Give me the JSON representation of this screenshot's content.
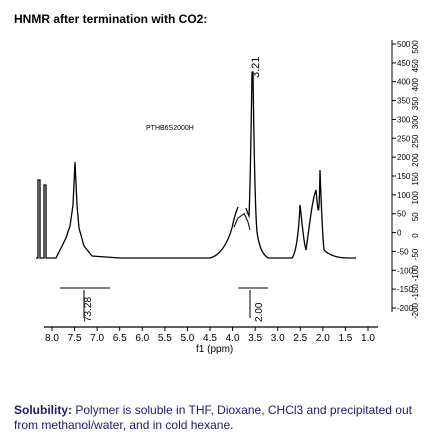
{
  "title": "HNMR after termination with CO2:",
  "spectrum": {
    "peak_label": "3.21",
    "sample_label": "PTHB6S2000H",
    "integrals": [
      "73.28",
      "2.00"
    ],
    "x_ticks": [
      "8.0",
      "7.5",
      "7.0",
      "6.5",
      "6.0",
      "5.5",
      "5.0",
      "4.5",
      "4.0",
      "3.5",
      "3.0",
      "2.5",
      "2.0",
      "1.5",
      "1.0"
    ],
    "x_label": "f1 (ppm)",
    "right_ticks": [
      "500",
      "450",
      "400",
      "350",
      "300",
      "250",
      "200",
      "150",
      "100",
      "50",
      "0",
      "-50",
      "-100",
      "-150",
      "-200"
    ],
    "colors": {
      "line": "#000000"
    }
  },
  "solubility": {
    "label": "Solubility:",
    "text": "Polymer is soluble in THF, Dioxane, CHCl3 and precipitated out from methanol/water, and in cold hexane."
  }
}
